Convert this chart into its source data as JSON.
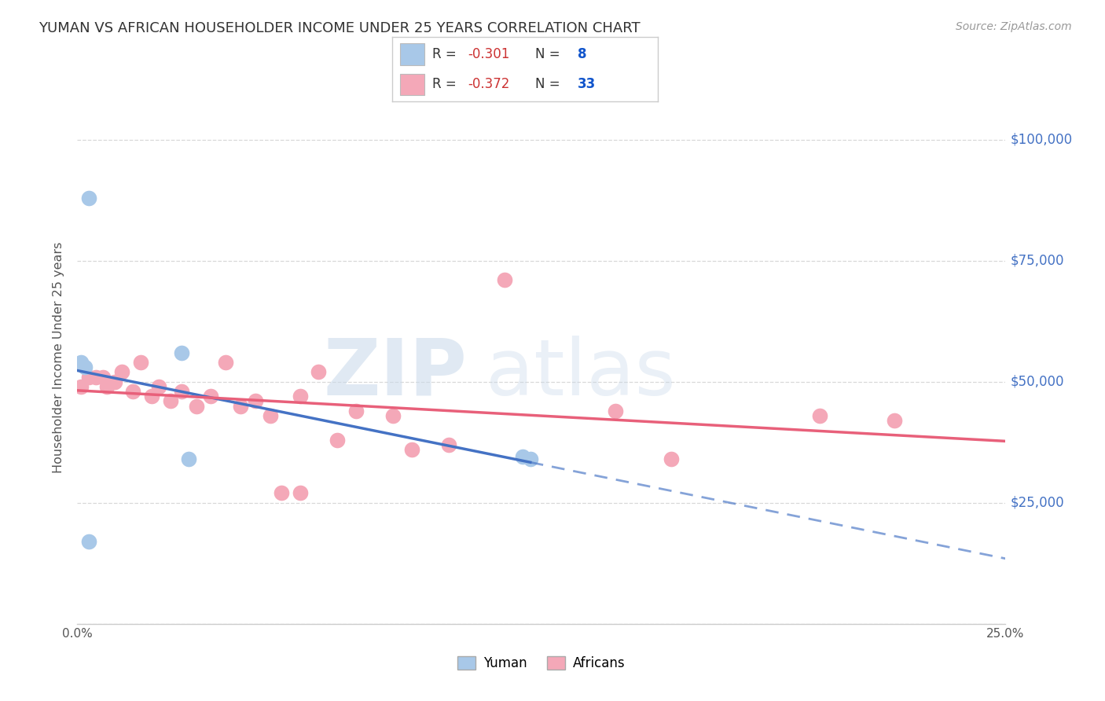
{
  "title": "YUMAN VS AFRICAN HOUSEHOLDER INCOME UNDER 25 YEARS CORRELATION CHART",
  "source": "Source: ZipAtlas.com",
  "ylabel": "Householder Income Under 25 years",
  "xlim": [
    0.0,
    0.25
  ],
  "ylim": [
    0,
    110000
  ],
  "yticks": [
    0,
    25000,
    50000,
    75000,
    100000
  ],
  "ytick_labels": [
    "",
    "$25,000",
    "$50,000",
    "$75,000",
    "$100,000"
  ],
  "xticks": [
    0.0,
    0.05,
    0.1,
    0.15,
    0.2,
    0.25
  ],
  "xtick_labels": [
    "0.0%",
    "",
    "",
    "",
    "",
    "25.0%"
  ],
  "background_color": "#ffffff",
  "grid_color": "#d8d8d8",
  "yuman_color": "#a8c8e8",
  "african_color": "#f4a8b8",
  "yuman_line_color": "#4472c4",
  "african_line_color": "#e8607a",
  "yuman_R": "-0.301",
  "yuman_N": "8",
  "african_R": "-0.372",
  "african_N": "33",
  "yuman_x": [
    0.001,
    0.002,
    0.028,
    0.03,
    0.12,
    0.122,
    0.003,
    0.003
  ],
  "yuman_y": [
    54000,
    53000,
    56000,
    34000,
    34500,
    34000,
    88000,
    17000
  ],
  "african_x": [
    0.001,
    0.003,
    0.005,
    0.007,
    0.008,
    0.01,
    0.012,
    0.015,
    0.017,
    0.02,
    0.022,
    0.025,
    0.028,
    0.032,
    0.036,
    0.04,
    0.044,
    0.048,
    0.052,
    0.055,
    0.06,
    0.065,
    0.07,
    0.075,
    0.085,
    0.09,
    0.1,
    0.115,
    0.145,
    0.16,
    0.2,
    0.22,
    0.06
  ],
  "african_y": [
    49000,
    51000,
    51000,
    51000,
    49000,
    50000,
    52000,
    48000,
    54000,
    47000,
    49000,
    46000,
    48000,
    45000,
    47000,
    54000,
    45000,
    46000,
    43000,
    27000,
    27000,
    52000,
    38000,
    44000,
    43000,
    36000,
    37000,
    71000,
    44000,
    34000,
    43000,
    42000,
    47000
  ]
}
